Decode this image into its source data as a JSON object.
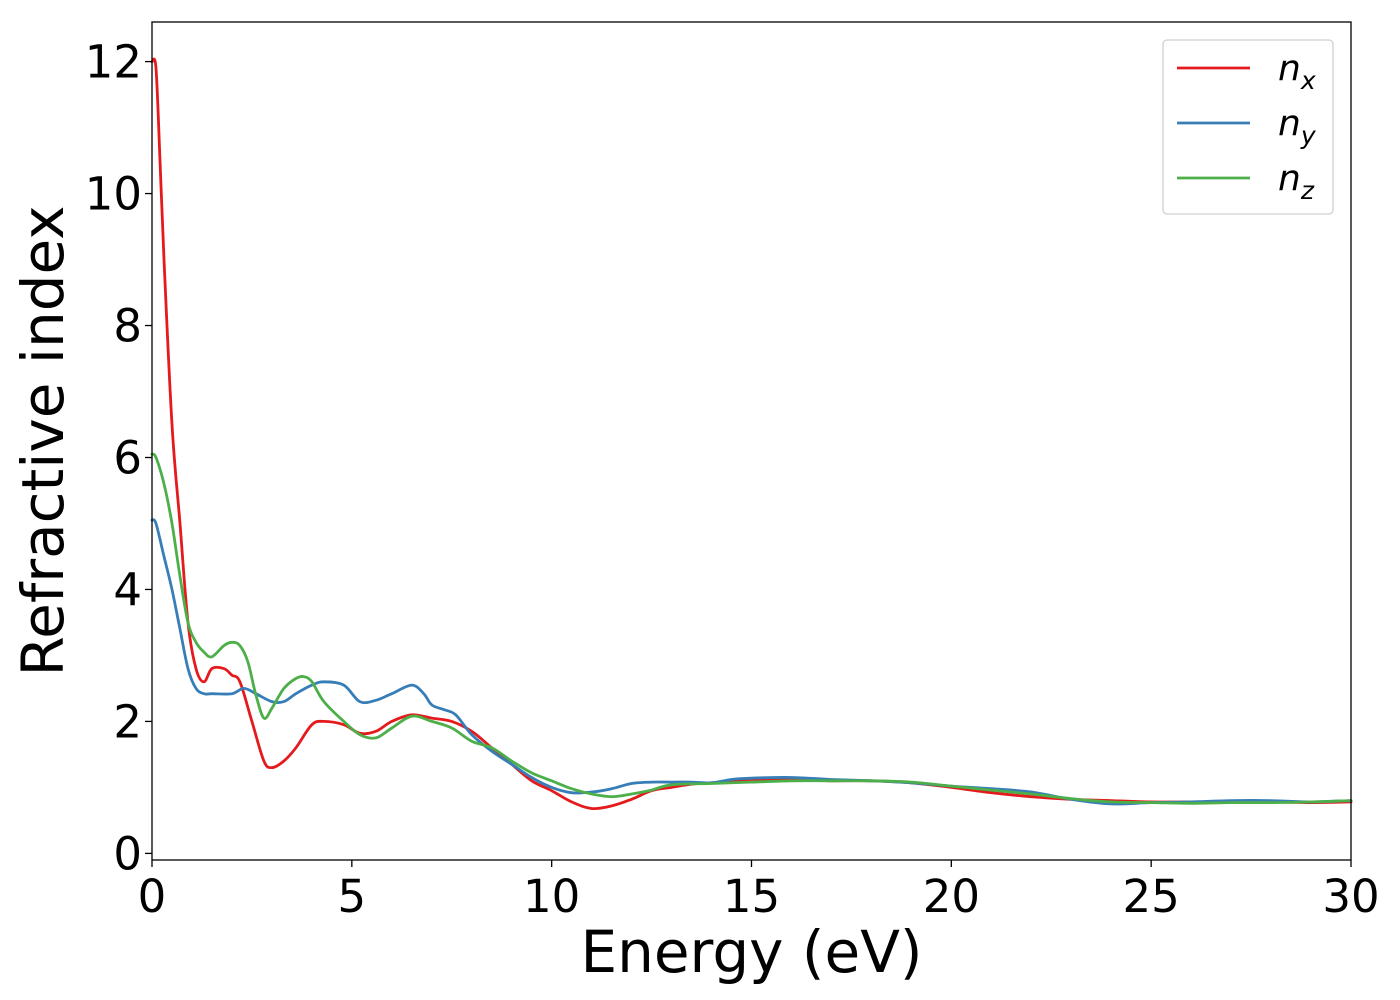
{
  "chart_data": {
    "type": "line",
    "title": "",
    "xlabel": "Energy (eV)",
    "ylabel": "Refractive index",
    "xlim": [
      0,
      30
    ],
    "ylim": [
      -0.1,
      12.6
    ],
    "xticks": [
      0,
      5,
      10,
      15,
      20,
      25,
      30
    ],
    "yticks": [
      0,
      2,
      4,
      6,
      8,
      10,
      12
    ],
    "grid": false,
    "legend_position": "top-right",
    "series": [
      {
        "name": "n",
        "subscript": "x",
        "color": "#e41a1c",
        "x": [
          0,
          0.1,
          0.2,
          0.3,
          0.5,
          0.7,
          0.9,
          1.1,
          1.3,
          1.5,
          1.8,
          2.0,
          2.2,
          2.5,
          2.8,
          3.0,
          3.3,
          3.6,
          4.0,
          4.3,
          4.8,
          5.2,
          5.6,
          6.0,
          6.5,
          7.0,
          7.5,
          8.0,
          8.5,
          9.0,
          9.5,
          10.0,
          10.5,
          11.0,
          11.5,
          12.0,
          12.5,
          13.0,
          13.5,
          14.0,
          15.0,
          16.0,
          17.0,
          18.0,
          19.0,
          20.0,
          21.0,
          22.0,
          23.0,
          24.0,
          25.0,
          26.0,
          27.0,
          28.0,
          29.0,
          30.0
        ],
        "y": [
          12.0,
          11.9,
          10.5,
          9.0,
          6.5,
          5.0,
          3.5,
          2.8,
          2.6,
          2.8,
          2.8,
          2.7,
          2.6,
          2.0,
          1.4,
          1.3,
          1.4,
          1.6,
          1.95,
          2.0,
          1.95,
          1.82,
          1.85,
          2.0,
          2.1,
          2.05,
          2.0,
          1.85,
          1.6,
          1.35,
          1.1,
          0.95,
          0.78,
          0.68,
          0.72,
          0.82,
          0.95,
          1.0,
          1.05,
          1.07,
          1.12,
          1.12,
          1.1,
          1.1,
          1.07,
          1.0,
          0.92,
          0.86,
          0.82,
          0.8,
          0.78,
          0.78,
          0.78,
          0.78,
          0.77,
          0.78
        ]
      },
      {
        "name": "n",
        "subscript": "y",
        "color": "#377eb8",
        "x": [
          0,
          0.1,
          0.3,
          0.5,
          0.7,
          0.9,
          1.1,
          1.3,
          1.5,
          2.0,
          2.3,
          2.6,
          3.0,
          3.3,
          3.6,
          4.0,
          4.3,
          4.8,
          5.2,
          5.6,
          6.0,
          6.5,
          6.8,
          7.0,
          7.3,
          7.6,
          8.0,
          8.5,
          9.0,
          9.5,
          10.0,
          10.5,
          11.0,
          11.5,
          12.0,
          12.5,
          13.0,
          13.5,
          14.0,
          14.5,
          15.0,
          16.0,
          17.0,
          18.0,
          19.0,
          20.0,
          21.0,
          22.0,
          23.0,
          24.0,
          25.0,
          26.0,
          27.0,
          28.0,
          29.0,
          30.0
        ],
        "y": [
          5.05,
          5.0,
          4.5,
          4.0,
          3.4,
          2.8,
          2.5,
          2.42,
          2.42,
          2.42,
          2.5,
          2.42,
          2.3,
          2.3,
          2.42,
          2.55,
          2.6,
          2.55,
          2.3,
          2.32,
          2.42,
          2.55,
          2.42,
          2.25,
          2.18,
          2.1,
          1.8,
          1.55,
          1.35,
          1.15,
          1.0,
          0.92,
          0.93,
          0.98,
          1.06,
          1.08,
          1.08,
          1.08,
          1.07,
          1.12,
          1.14,
          1.15,
          1.12,
          1.1,
          1.07,
          1.02,
          0.98,
          0.93,
          0.82,
          0.75,
          0.77,
          0.78,
          0.8,
          0.8,
          0.78,
          0.8
        ]
      },
      {
        "name": "n",
        "subscript": "z",
        "color": "#4daf4a",
        "x": [
          0,
          0.1,
          0.3,
          0.5,
          0.7,
          0.9,
          1.1,
          1.3,
          1.5,
          1.8,
          2.0,
          2.2,
          2.4,
          2.6,
          2.8,
          3.0,
          3.3,
          3.6,
          3.8,
          4.0,
          4.3,
          4.8,
          5.2,
          5.6,
          6.0,
          6.5,
          7.0,
          7.5,
          8.0,
          8.5,
          9.0,
          9.5,
          10.0,
          10.5,
          11.0,
          11.5,
          12.0,
          12.5,
          13.0,
          14.0,
          15.0,
          16.0,
          17.0,
          18.0,
          19.0,
          20.0,
          21.0,
          22.0,
          23.0,
          24.0,
          25.0,
          26.0,
          27.0,
          28.0,
          29.0,
          30.0
        ],
        "y": [
          6.05,
          6.0,
          5.6,
          5.0,
          4.2,
          3.5,
          3.2,
          3.05,
          2.98,
          3.15,
          3.2,
          3.15,
          2.9,
          2.4,
          2.05,
          2.2,
          2.5,
          2.65,
          2.68,
          2.6,
          2.3,
          2.0,
          1.8,
          1.75,
          1.9,
          2.08,
          2.0,
          1.9,
          1.7,
          1.6,
          1.4,
          1.22,
          1.1,
          0.98,
          0.9,
          0.86,
          0.9,
          0.96,
          1.04,
          1.06,
          1.08,
          1.1,
          1.1,
          1.1,
          1.08,
          1.02,
          0.96,
          0.9,
          0.83,
          0.78,
          0.77,
          0.76,
          0.77,
          0.77,
          0.78,
          0.8
        ]
      }
    ]
  }
}
